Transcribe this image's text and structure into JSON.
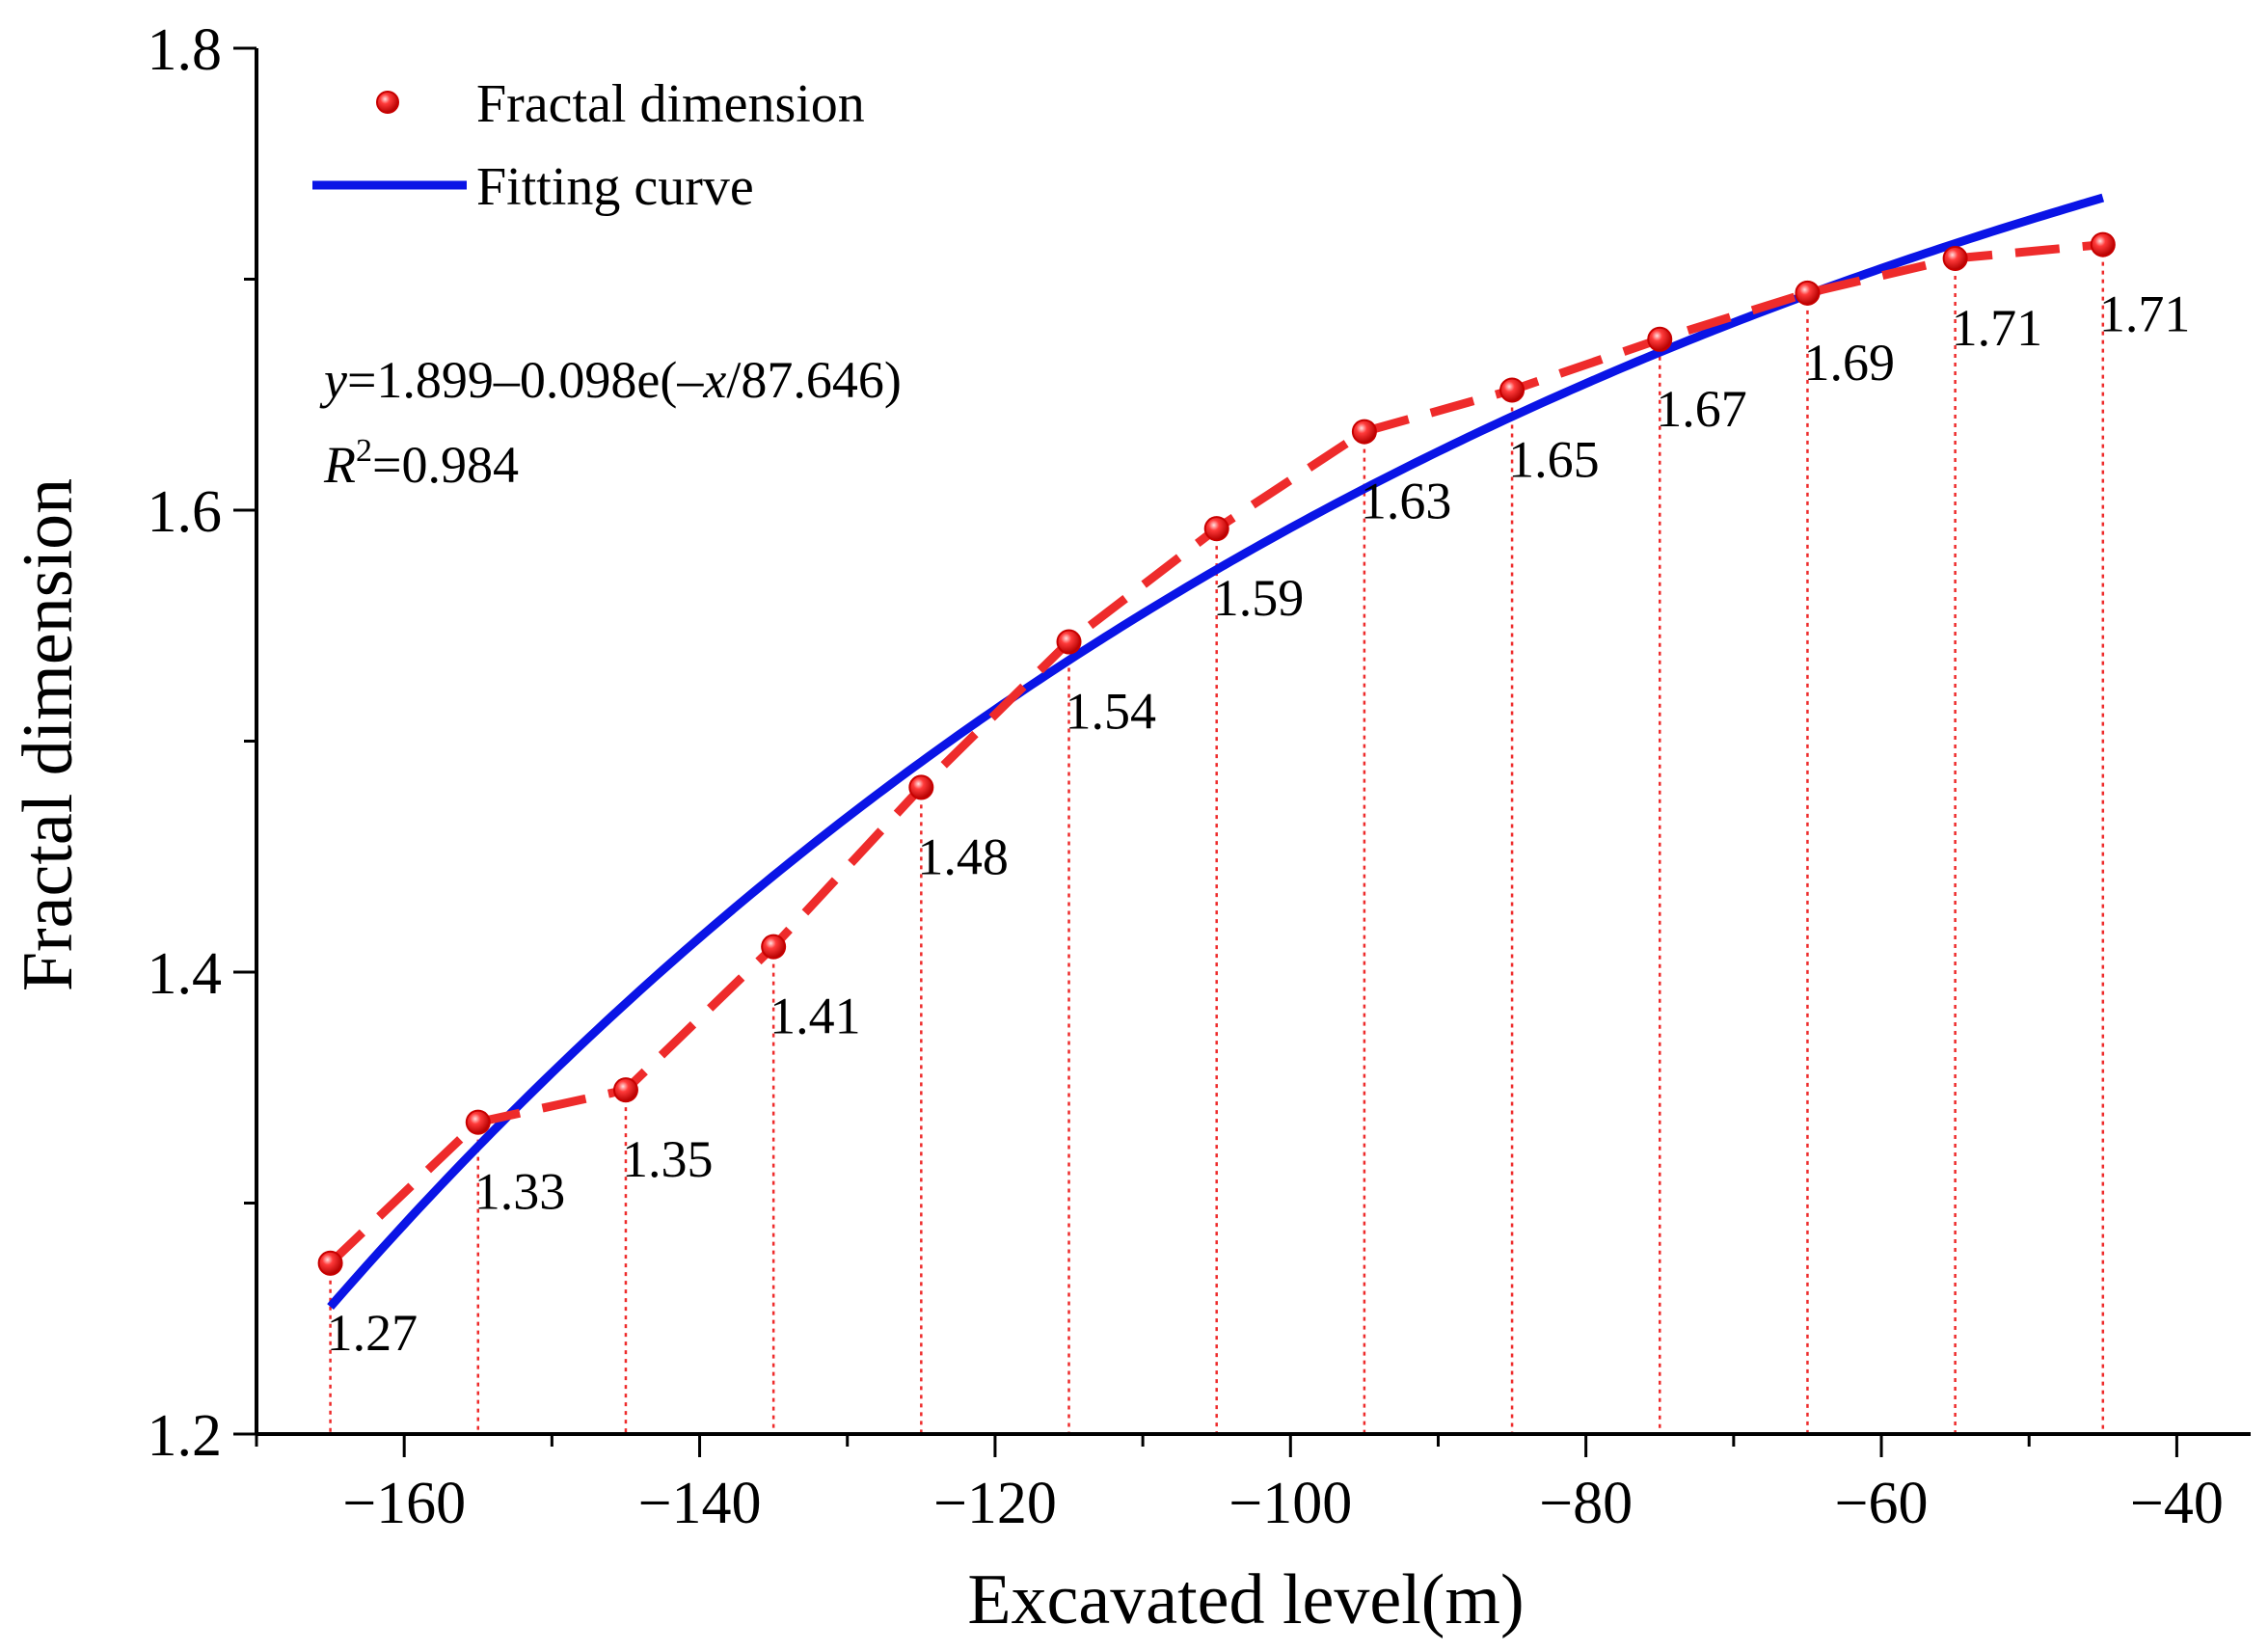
{
  "chart_data": {
    "type": "line",
    "xlabel": "Excavated level(m)",
    "ylabel": "Fractal dimension",
    "xlim": [
      -170,
      -35
    ],
    "ylim": [
      1.2,
      1.8
    ],
    "x_ticks": [
      -160,
      -140,
      -120,
      -100,
      -80,
      -60,
      -40
    ],
    "x_tick_labels": [
      "−160",
      "−140",
      "−120",
      "−100",
      "−80",
      "−60",
      "−40"
    ],
    "y_ticks": [
      1.2,
      1.4,
      1.6,
      1.8
    ],
    "y_tick_labels": [
      "1.2",
      "1.4",
      "1.6",
      "1.8"
    ],
    "legend_position": "top-left",
    "series": [
      {
        "name": "Fractal dimension",
        "style": "dashed-line-with-markers",
        "color": "#ee2b2b",
        "x": [
          -165,
          -155,
          -145,
          -135,
          -125,
          -115,
          -105,
          -95,
          -85,
          -75,
          -65,
          -55,
          -45
        ],
        "values": [
          1.274,
          1.335,
          1.349,
          1.411,
          1.48,
          1.543,
          1.592,
          1.634,
          1.652,
          1.674,
          1.694,
          1.709,
          1.715
        ],
        "labels": [
          "1.27",
          "1.33",
          "1.35",
          "1.41",
          "1.48",
          "1.54",
          "1.59",
          "1.63",
          "1.65",
          "1.67",
          "1.69",
          "1.71",
          "1.71"
        ]
      },
      {
        "name": "Fitting curve",
        "style": "solid-line",
        "color": "#0a14e6",
        "equation": {
          "a": 1.899,
          "b": 0.098,
          "c": 87.646
        },
        "x_range": [
          -165,
          -45
        ]
      }
    ],
    "annotations": {
      "equation": {
        "y": "y",
        "body": "=1.899–0.098e(–",
        "x": "x",
        "tail": "/87.646)"
      },
      "r2": {
        "r": "R",
        "sup": "2",
        "value": "=0.984"
      }
    },
    "grid": false
  }
}
